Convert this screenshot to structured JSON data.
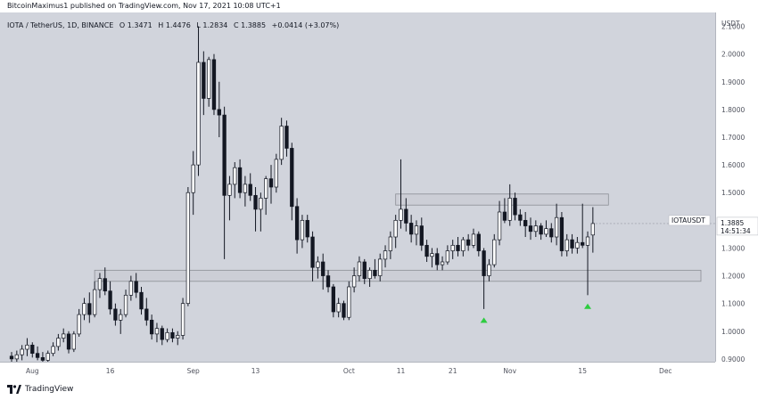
{
  "header": {
    "publish_line": "BitcoinMaximus1 published on TradingView.com, Nov 17, 2021 10:08 UTC+1"
  },
  "legend": {
    "symbol": "IOTA / TetherUS, 1D, BINANCE",
    "o_label": "O",
    "o": "1.3471",
    "h_label": "H",
    "h": "1.4476",
    "l_label": "L",
    "l": "1.2834",
    "c_label": "C",
    "c": "1.3885",
    "change": "+0.0414 (+3.07%)"
  },
  "footer": {
    "brand": "TradingView"
  },
  "colors": {
    "background": "#d1d4dc",
    "up_fill": "#ffffff",
    "down_fill": "#131722",
    "wick": "#131722",
    "zone_fill": "#c9ccd4",
    "zone_border": "#8c8f96",
    "marker": "#2ecc40",
    "price_label_bg": "#ffffff"
  },
  "chart_data": {
    "type": "candlestick",
    "title": "IOTA / TetherUS, 1D, BINANCE",
    "y_unit": "USDT",
    "ylim": [
      0.89,
      2.15
    ],
    "y_ticks": [
      "0.9000",
      "1.0000",
      "1.1000",
      "1.2000",
      "1.3000",
      "1.4000",
      "1.5000",
      "1.6000",
      "1.7000",
      "1.8000",
      "1.9000",
      "2.0000",
      "2.1000"
    ],
    "x_ticks": [
      {
        "label": "Aug",
        "date": "2021-08-01"
      },
      {
        "label": "16",
        "date": "2021-08-16"
      },
      {
        "label": "Sep",
        "date": "2021-09-01"
      },
      {
        "label": "13",
        "date": "2021-09-13"
      },
      {
        "label": "Oct",
        "date": "2021-10-01"
      },
      {
        "label": "11",
        "date": "2021-10-11"
      },
      {
        "label": "21",
        "date": "2021-10-21"
      },
      {
        "label": "Nov",
        "date": "2021-11-01"
      },
      {
        "label": "15",
        "date": "2021-11-15"
      },
      {
        "label": "Dec",
        "date": "2021-12-01"
      }
    ],
    "x_range": [
      "2021-07-28",
      "2021-12-10"
    ],
    "last_price": {
      "symbol": "IOTAUSDT",
      "price": "1.3885",
      "countdown": "14:51:34",
      "value": 1.3885
    },
    "zones": [
      {
        "from": "2021-08-13",
        "to": "2021-12-12",
        "low": 1.18,
        "high": 1.22
      },
      {
        "from": "2021-10-10",
        "to": "2021-11-20",
        "low": 1.455,
        "high": 1.495
      }
    ],
    "markers": [
      {
        "date": "2021-10-27",
        "value": 1.04,
        "shape": "triangle-up"
      },
      {
        "date": "2021-11-16",
        "value": 1.09,
        "shape": "triangle-up"
      }
    ],
    "candles": [
      {
        "date": "2021-07-28",
        "o": 0.91,
        "h": 0.925,
        "l": 0.885,
        "c": 0.9
      },
      {
        "date": "2021-07-29",
        "o": 0.9,
        "h": 0.93,
        "l": 0.89,
        "c": 0.915
      },
      {
        "date": "2021-07-30",
        "o": 0.915,
        "h": 0.95,
        "l": 0.895,
        "c": 0.935
      },
      {
        "date": "2021-07-31",
        "o": 0.935,
        "h": 0.975,
        "l": 0.91,
        "c": 0.95
      },
      {
        "date": "2021-08-01",
        "o": 0.95,
        "h": 0.96,
        "l": 0.905,
        "c": 0.92
      },
      {
        "date": "2021-08-02",
        "o": 0.92,
        "h": 0.945,
        "l": 0.895,
        "c": 0.905
      },
      {
        "date": "2021-08-03",
        "o": 0.905,
        "h": 0.925,
        "l": 0.88,
        "c": 0.895
      },
      {
        "date": "2021-08-04",
        "o": 0.895,
        "h": 0.93,
        "l": 0.885,
        "c": 0.92
      },
      {
        "date": "2021-08-05",
        "o": 0.92,
        "h": 0.96,
        "l": 0.91,
        "c": 0.945
      },
      {
        "date": "2021-08-06",
        "o": 0.945,
        "h": 0.99,
        "l": 0.93,
        "c": 0.975
      },
      {
        "date": "2021-08-07",
        "o": 0.975,
        "h": 1.01,
        "l": 0.96,
        "c": 0.99
      },
      {
        "date": "2021-08-08",
        "o": 0.99,
        "h": 1.0,
        "l": 0.92,
        "c": 0.935
      },
      {
        "date": "2021-08-09",
        "o": 0.935,
        "h": 1.0,
        "l": 0.925,
        "c": 0.99
      },
      {
        "date": "2021-08-10",
        "o": 0.99,
        "h": 1.08,
        "l": 0.98,
        "c": 1.06
      },
      {
        "date": "2021-08-11",
        "o": 1.06,
        "h": 1.12,
        "l": 1.04,
        "c": 1.1
      },
      {
        "date": "2021-08-12",
        "o": 1.1,
        "h": 1.14,
        "l": 1.03,
        "c": 1.06
      },
      {
        "date": "2021-08-13",
        "o": 1.06,
        "h": 1.18,
        "l": 1.05,
        "c": 1.15
      },
      {
        "date": "2021-08-14",
        "o": 1.15,
        "h": 1.21,
        "l": 1.12,
        "c": 1.19
      },
      {
        "date": "2021-08-15",
        "o": 1.19,
        "h": 1.23,
        "l": 1.13,
        "c": 1.145
      },
      {
        "date": "2021-08-16",
        "o": 1.145,
        "h": 1.18,
        "l": 1.06,
        "c": 1.08
      },
      {
        "date": "2021-08-17",
        "o": 1.08,
        "h": 1.1,
        "l": 1.02,
        "c": 1.04
      },
      {
        "date": "2021-08-18",
        "o": 1.04,
        "h": 1.08,
        "l": 0.99,
        "c": 1.06
      },
      {
        "date": "2021-08-19",
        "o": 1.06,
        "h": 1.15,
        "l": 1.05,
        "c": 1.13
      },
      {
        "date": "2021-08-20",
        "o": 1.13,
        "h": 1.2,
        "l": 1.11,
        "c": 1.18
      },
      {
        "date": "2021-08-21",
        "o": 1.18,
        "h": 1.21,
        "l": 1.12,
        "c": 1.14
      },
      {
        "date": "2021-08-22",
        "o": 1.14,
        "h": 1.16,
        "l": 1.06,
        "c": 1.08
      },
      {
        "date": "2021-08-23",
        "o": 1.08,
        "h": 1.12,
        "l": 1.02,
        "c": 1.04
      },
      {
        "date": "2021-08-24",
        "o": 1.04,
        "h": 1.06,
        "l": 0.97,
        "c": 0.99
      },
      {
        "date": "2021-08-25",
        "o": 0.99,
        "h": 1.03,
        "l": 0.96,
        "c": 1.01
      },
      {
        "date": "2021-08-26",
        "o": 1.01,
        "h": 1.02,
        "l": 0.95,
        "c": 0.97
      },
      {
        "date": "2021-08-27",
        "o": 0.97,
        "h": 1.01,
        "l": 0.96,
        "c": 0.995
      },
      {
        "date": "2021-08-28",
        "o": 0.995,
        "h": 1.01,
        "l": 0.96,
        "c": 0.975
      },
      {
        "date": "2021-08-29",
        "o": 0.975,
        "h": 1.0,
        "l": 0.95,
        "c": 0.985
      },
      {
        "date": "2021-08-30",
        "o": 0.985,
        "h": 1.12,
        "l": 0.97,
        "c": 1.1
      },
      {
        "date": "2021-08-31",
        "o": 1.1,
        "h": 1.52,
        "l": 1.09,
        "c": 1.5
      },
      {
        "date": "2021-09-01",
        "o": 1.5,
        "h": 1.65,
        "l": 1.42,
        "c": 1.6
      },
      {
        "date": "2021-09-02",
        "o": 1.6,
        "h": 2.1,
        "l": 1.56,
        "c": 1.97
      },
      {
        "date": "2021-09-03",
        "o": 1.97,
        "h": 2.01,
        "l": 1.78,
        "c": 1.84
      },
      {
        "date": "2021-09-04",
        "o": 1.84,
        "h": 1.99,
        "l": 1.81,
        "c": 1.98
      },
      {
        "date": "2021-09-05",
        "o": 1.98,
        "h": 2.0,
        "l": 1.78,
        "c": 1.8
      },
      {
        "date": "2021-09-06",
        "o": 1.8,
        "h": 1.9,
        "l": 1.7,
        "c": 1.78
      },
      {
        "date": "2021-09-07",
        "o": 1.78,
        "h": 1.81,
        "l": 1.26,
        "c": 1.49
      },
      {
        "date": "2021-09-08",
        "o": 1.49,
        "h": 1.56,
        "l": 1.4,
        "c": 1.53
      },
      {
        "date": "2021-09-09",
        "o": 1.53,
        "h": 1.61,
        "l": 1.48,
        "c": 1.59
      },
      {
        "date": "2021-09-10",
        "o": 1.59,
        "h": 1.62,
        "l": 1.48,
        "c": 1.5
      },
      {
        "date": "2021-09-11",
        "o": 1.5,
        "h": 1.56,
        "l": 1.45,
        "c": 1.53
      },
      {
        "date": "2021-09-12",
        "o": 1.53,
        "h": 1.57,
        "l": 1.47,
        "c": 1.49
      },
      {
        "date": "2021-09-13",
        "o": 1.49,
        "h": 1.52,
        "l": 1.36,
        "c": 1.44
      },
      {
        "date": "2021-09-14",
        "o": 1.44,
        "h": 1.5,
        "l": 1.36,
        "c": 1.48
      },
      {
        "date": "2021-09-15",
        "o": 1.48,
        "h": 1.56,
        "l": 1.42,
        "c": 1.55
      },
      {
        "date": "2021-09-16",
        "o": 1.55,
        "h": 1.6,
        "l": 1.46,
        "c": 1.52
      },
      {
        "date": "2021-09-17",
        "o": 1.52,
        "h": 1.64,
        "l": 1.5,
        "c": 1.62
      },
      {
        "date": "2021-09-18",
        "o": 1.62,
        "h": 1.77,
        "l": 1.6,
        "c": 1.74
      },
      {
        "date": "2021-09-19",
        "o": 1.74,
        "h": 1.76,
        "l": 1.63,
        "c": 1.66
      },
      {
        "date": "2021-09-20",
        "o": 1.66,
        "h": 1.68,
        "l": 1.4,
        "c": 1.45
      },
      {
        "date": "2021-09-21",
        "o": 1.45,
        "h": 1.48,
        "l": 1.28,
        "c": 1.33
      },
      {
        "date": "2021-09-22",
        "o": 1.33,
        "h": 1.42,
        "l": 1.3,
        "c": 1.4
      },
      {
        "date": "2021-09-23",
        "o": 1.4,
        "h": 1.42,
        "l": 1.32,
        "c": 1.34
      },
      {
        "date": "2021-09-24",
        "o": 1.34,
        "h": 1.36,
        "l": 1.18,
        "c": 1.23
      },
      {
        "date": "2021-09-25",
        "o": 1.23,
        "h": 1.27,
        "l": 1.19,
        "c": 1.25
      },
      {
        "date": "2021-09-26",
        "o": 1.25,
        "h": 1.28,
        "l": 1.15,
        "c": 1.2
      },
      {
        "date": "2021-09-27",
        "o": 1.2,
        "h": 1.22,
        "l": 1.14,
        "c": 1.16
      },
      {
        "date": "2021-09-28",
        "o": 1.16,
        "h": 1.17,
        "l": 1.05,
        "c": 1.07
      },
      {
        "date": "2021-09-29",
        "o": 1.07,
        "h": 1.12,
        "l": 1.05,
        "c": 1.1
      },
      {
        "date": "2021-09-30",
        "o": 1.1,
        "h": 1.11,
        "l": 1.04,
        "c": 1.05
      },
      {
        "date": "2021-10-01",
        "o": 1.05,
        "h": 1.18,
        "l": 1.04,
        "c": 1.16
      },
      {
        "date": "2021-10-02",
        "o": 1.16,
        "h": 1.23,
        "l": 1.14,
        "c": 1.2
      },
      {
        "date": "2021-10-03",
        "o": 1.2,
        "h": 1.27,
        "l": 1.18,
        "c": 1.25
      },
      {
        "date": "2021-10-04",
        "o": 1.25,
        "h": 1.26,
        "l": 1.17,
        "c": 1.19
      },
      {
        "date": "2021-10-05",
        "o": 1.19,
        "h": 1.23,
        "l": 1.16,
        "c": 1.22
      },
      {
        "date": "2021-10-06",
        "o": 1.22,
        "h": 1.26,
        "l": 1.19,
        "c": 1.2
      },
      {
        "date": "2021-10-07",
        "o": 1.2,
        "h": 1.28,
        "l": 1.18,
        "c": 1.26
      },
      {
        "date": "2021-10-08",
        "o": 1.26,
        "h": 1.31,
        "l": 1.23,
        "c": 1.29
      },
      {
        "date": "2021-10-09",
        "o": 1.29,
        "h": 1.36,
        "l": 1.26,
        "c": 1.34
      },
      {
        "date": "2021-10-10",
        "o": 1.34,
        "h": 1.42,
        "l": 1.3,
        "c": 1.4
      },
      {
        "date": "2021-10-11",
        "o": 1.4,
        "h": 1.62,
        "l": 1.37,
        "c": 1.44
      },
      {
        "date": "2021-10-12",
        "o": 1.44,
        "h": 1.48,
        "l": 1.36,
        "c": 1.39
      },
      {
        "date": "2021-10-13",
        "o": 1.39,
        "h": 1.42,
        "l": 1.32,
        "c": 1.35
      },
      {
        "date": "2021-10-14",
        "o": 1.35,
        "h": 1.4,
        "l": 1.31,
        "c": 1.38
      },
      {
        "date": "2021-10-15",
        "o": 1.38,
        "h": 1.41,
        "l": 1.29,
        "c": 1.31
      },
      {
        "date": "2021-10-16",
        "o": 1.31,
        "h": 1.33,
        "l": 1.25,
        "c": 1.27
      },
      {
        "date": "2021-10-17",
        "o": 1.27,
        "h": 1.3,
        "l": 1.23,
        "c": 1.28
      },
      {
        "date": "2021-10-18",
        "o": 1.28,
        "h": 1.3,
        "l": 1.22,
        "c": 1.24
      },
      {
        "date": "2021-10-19",
        "o": 1.24,
        "h": 1.27,
        "l": 1.22,
        "c": 1.25
      },
      {
        "date": "2021-10-20",
        "o": 1.25,
        "h": 1.31,
        "l": 1.24,
        "c": 1.29
      },
      {
        "date": "2021-10-21",
        "o": 1.29,
        "h": 1.33,
        "l": 1.26,
        "c": 1.31
      },
      {
        "date": "2021-10-22",
        "o": 1.31,
        "h": 1.34,
        "l": 1.27,
        "c": 1.29
      },
      {
        "date": "2021-10-23",
        "o": 1.29,
        "h": 1.34,
        "l": 1.27,
        "c": 1.33
      },
      {
        "date": "2021-10-24",
        "o": 1.33,
        "h": 1.35,
        "l": 1.29,
        "c": 1.31
      },
      {
        "date": "2021-10-25",
        "o": 1.31,
        "h": 1.37,
        "l": 1.3,
        "c": 1.35
      },
      {
        "date": "2021-10-26",
        "o": 1.35,
        "h": 1.36,
        "l": 1.27,
        "c": 1.29
      },
      {
        "date": "2021-10-27",
        "o": 1.29,
        "h": 1.3,
        "l": 1.08,
        "c": 1.2
      },
      {
        "date": "2021-10-28",
        "o": 1.2,
        "h": 1.26,
        "l": 1.18,
        "c": 1.24
      },
      {
        "date": "2021-10-29",
        "o": 1.24,
        "h": 1.35,
        "l": 1.23,
        "c": 1.33
      },
      {
        "date": "2021-10-30",
        "o": 1.33,
        "h": 1.47,
        "l": 1.31,
        "c": 1.43
      },
      {
        "date": "2021-10-31",
        "o": 1.43,
        "h": 1.48,
        "l": 1.39,
        "c": 1.4
      },
      {
        "date": "2021-11-01",
        "o": 1.4,
        "h": 1.53,
        "l": 1.38,
        "c": 1.48
      },
      {
        "date": "2021-11-02",
        "o": 1.48,
        "h": 1.5,
        "l": 1.4,
        "c": 1.42
      },
      {
        "date": "2021-11-03",
        "o": 1.42,
        "h": 1.44,
        "l": 1.38,
        "c": 1.4
      },
      {
        "date": "2021-11-04",
        "o": 1.4,
        "h": 1.43,
        "l": 1.34,
        "c": 1.38
      },
      {
        "date": "2021-11-05",
        "o": 1.38,
        "h": 1.41,
        "l": 1.33,
        "c": 1.36
      },
      {
        "date": "2021-11-06",
        "o": 1.36,
        "h": 1.4,
        "l": 1.34,
        "c": 1.38
      },
      {
        "date": "2021-11-07",
        "o": 1.38,
        "h": 1.39,
        "l": 1.33,
        "c": 1.35
      },
      {
        "date": "2021-11-08",
        "o": 1.35,
        "h": 1.4,
        "l": 1.34,
        "c": 1.37
      },
      {
        "date": "2021-11-09",
        "o": 1.37,
        "h": 1.39,
        "l": 1.32,
        "c": 1.34
      },
      {
        "date": "2021-11-10",
        "o": 1.34,
        "h": 1.46,
        "l": 1.31,
        "c": 1.41
      },
      {
        "date": "2021-11-11",
        "o": 1.41,
        "h": 1.43,
        "l": 1.27,
        "c": 1.29
      },
      {
        "date": "2021-11-12",
        "o": 1.29,
        "h": 1.35,
        "l": 1.27,
        "c": 1.33
      },
      {
        "date": "2021-11-13",
        "o": 1.33,
        "h": 1.35,
        "l": 1.28,
        "c": 1.3
      },
      {
        "date": "2021-11-14",
        "o": 1.3,
        "h": 1.34,
        "l": 1.28,
        "c": 1.32
      },
      {
        "date": "2021-11-15",
        "o": 1.32,
        "h": 1.46,
        "l": 1.3,
        "c": 1.31
      },
      {
        "date": "2021-11-16",
        "o": 1.31,
        "h": 1.36,
        "l": 1.13,
        "c": 1.34
      },
      {
        "date": "2021-11-17",
        "o": 1.3471,
        "h": 1.4476,
        "l": 1.2834,
        "c": 1.3885
      }
    ]
  }
}
